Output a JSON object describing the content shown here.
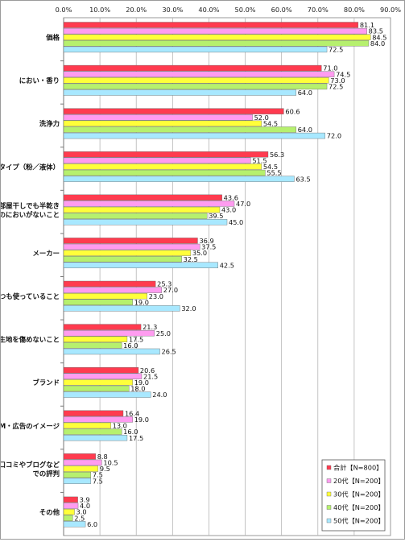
{
  "chart_data": {
    "type": "bar",
    "orientation": "horizontal",
    "xlim": [
      0,
      90
    ],
    "ticks": [
      "0.0%",
      "10.0%",
      "20.0%",
      "30.0%",
      "40.0%",
      "50.0%",
      "60.0%",
      "70.0%",
      "80.0%",
      "90.0%"
    ],
    "tick_values": [
      0,
      10,
      20,
      30,
      40,
      50,
      60,
      70,
      80,
      90
    ],
    "grid": true,
    "legend_position": "bottom-right",
    "categories": [
      [
        "価格"
      ],
      [
        "におい・香り"
      ],
      [
        "洗浄力"
      ],
      [
        "タイプ（粉／液体）"
      ],
      [
        "部屋干しでも半乾き",
        "のにおいがないこと"
      ],
      [
        "メーカー"
      ],
      [
        "いつも使っていること"
      ],
      [
        "生地を傷めないこと"
      ],
      [
        "ブランド"
      ],
      [
        "CM・広告のイメージ"
      ],
      [
        "口コミやブログなど",
        "での評判"
      ],
      [
        "その他"
      ]
    ],
    "series": [
      {
        "name": "合計【N=800】",
        "color": "#ff3b4f",
        "values": [
          81.1,
          71.0,
          60.6,
          56.3,
          43.6,
          36.9,
          25.3,
          21.3,
          20.6,
          16.4,
          8.8,
          3.9
        ]
      },
      {
        "name": "20代【N=200】",
        "color": "#ff9cf0",
        "values": [
          83.5,
          74.5,
          52.0,
          51.5,
          47.0,
          37.5,
          27.0,
          25.0,
          21.5,
          19.0,
          10.5,
          4.0
        ]
      },
      {
        "name": "30代【N=200】",
        "color": "#ffff3a",
        "values": [
          84.5,
          73.0,
          54.5,
          54.5,
          43.0,
          35.0,
          23.0,
          17.5,
          19.0,
          13.0,
          9.5,
          3.0
        ]
      },
      {
        "name": "40代【N=200】",
        "color": "#b6f06e",
        "values": [
          84.0,
          72.5,
          64.0,
          55.5,
          39.5,
          32.5,
          19.0,
          16.0,
          18.0,
          16.0,
          7.5,
          2.5
        ]
      },
      {
        "name": "50代【N=200】",
        "color": "#a8e8ff",
        "values": [
          72.5,
          64.0,
          72.0,
          63.5,
          45.0,
          42.5,
          32.0,
          26.5,
          24.0,
          17.5,
          7.5,
          6.0
        ]
      }
    ]
  }
}
